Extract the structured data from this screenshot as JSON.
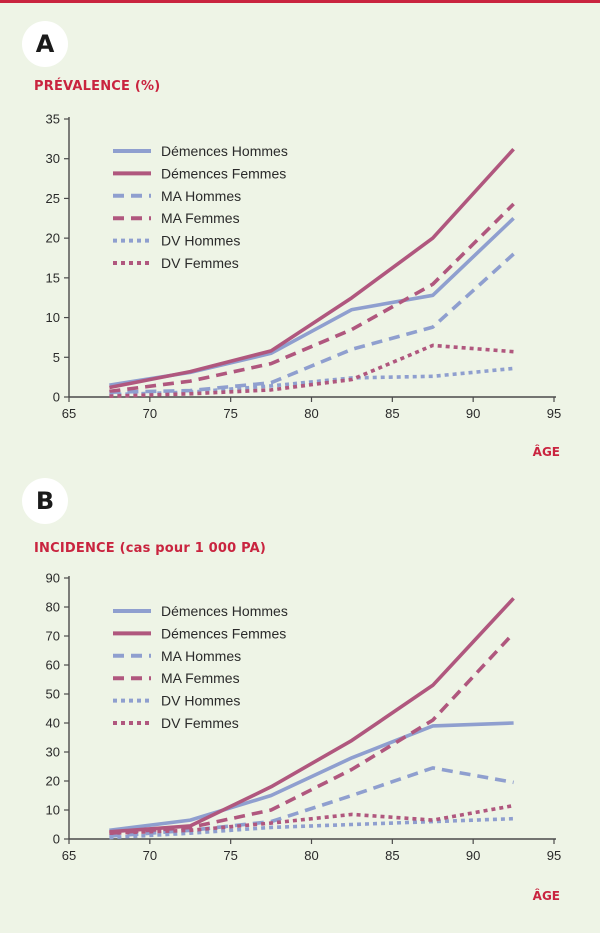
{
  "colors": {
    "hommes": "#8f9fcf",
    "femmes": "#b0577e",
    "accent": "#c9243f"
  },
  "chart_data": [
    {
      "panel": "A",
      "type": "line",
      "ylabel": "PRÉVALENCE (%)",
      "xlabel": "ÂGE",
      "xlim": [
        65,
        95
      ],
      "ylim": [
        0,
        35
      ],
      "xticks": [
        65,
        70,
        75,
        80,
        85,
        90,
        95
      ],
      "yticks": [
        0,
        5,
        10,
        15,
        20,
        25,
        30,
        35
      ],
      "x": [
        67.5,
        72.5,
        77.5,
        82.5,
        87.5,
        92.5
      ],
      "series": [
        {
          "name": "Démences Hommes",
          "style": "solid",
          "group": "hommes",
          "values": [
            1.5,
            3.1,
            5.5,
            11.0,
            12.8,
            22.5
          ]
        },
        {
          "name": "Démences Femmes",
          "style": "solid",
          "group": "femmes",
          "values": [
            1.2,
            3.2,
            5.8,
            12.5,
            20.0,
            31.2
          ]
        },
        {
          "name": "MA Hommes",
          "style": "dashed",
          "group": "hommes",
          "values": [
            0.6,
            0.8,
            1.8,
            6.0,
            8.8,
            18.0
          ]
        },
        {
          "name": "MA Femmes",
          "style": "dashed",
          "group": "femmes",
          "values": [
            0.7,
            2.0,
            4.2,
            8.5,
            14.2,
            24.3
          ]
        },
        {
          "name": "DV Hommes",
          "style": "dotted",
          "group": "hommes",
          "values": [
            0.3,
            0.6,
            1.4,
            2.4,
            2.6,
            3.6
          ]
        },
        {
          "name": "DV Femmes",
          "style": "dotted",
          "group": "femmes",
          "values": [
            0.1,
            0.4,
            0.9,
            2.2,
            6.5,
            5.7
          ]
        }
      ]
    },
    {
      "panel": "B",
      "type": "line",
      "ylabel": "INCIDENCE (cas pour 1 000 PA)",
      "xlabel": "ÂGE",
      "xlim": [
        65,
        95
      ],
      "ylim": [
        0,
        90
      ],
      "xticks": [
        65,
        70,
        75,
        80,
        85,
        90,
        95
      ],
      "yticks": [
        0,
        10,
        20,
        30,
        40,
        50,
        60,
        70,
        80,
        90
      ],
      "x": [
        67.5,
        72.5,
        77.5,
        82.5,
        87.5,
        92.5
      ],
      "series": [
        {
          "name": "Démences Hommes",
          "style": "solid",
          "group": "hommes",
          "values": [
            3,
            6.5,
            15,
            28,
            39,
            40
          ]
        },
        {
          "name": "Démences Femmes",
          "style": "solid",
          "group": "femmes",
          "values": [
            2.5,
            4.5,
            18,
            34,
            53,
            83
          ]
        },
        {
          "name": "MA Hommes",
          "style": "dashed",
          "group": "hommes",
          "values": [
            1,
            3,
            6,
            15,
            24.5,
            19.5
          ]
        },
        {
          "name": "MA Femmes",
          "style": "dashed",
          "group": "femmes",
          "values": [
            2,
            4,
            10,
            24,
            41,
            71
          ]
        },
        {
          "name": "DV Hommes",
          "style": "dotted",
          "group": "hommes",
          "values": [
            0.5,
            2,
            4,
            5,
            6,
            7
          ]
        },
        {
          "name": "DV Femmes",
          "style": "dotted",
          "group": "femmes",
          "values": [
            2,
            3,
            5.5,
            8.5,
            6.5,
            11.5
          ]
        }
      ]
    }
  ]
}
